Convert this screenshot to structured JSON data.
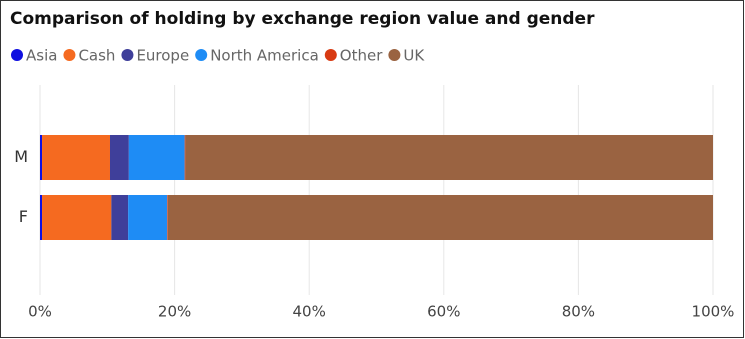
{
  "chart_data": {
    "type": "stacked_barh",
    "title": "Comparison of holding by exchange region value and gender",
    "categories": [
      "M",
      "F"
    ],
    "series": [
      {
        "name": "Asia",
        "color": "#1010e0",
        "values": [
          0.3,
          0.3
        ]
      },
      {
        "name": "Cash",
        "color": "#f56a20",
        "values": [
          10.1,
          10.3
        ]
      },
      {
        "name": "Europe",
        "color": "#3f3f9a",
        "values": [
          2.8,
          2.5
        ]
      },
      {
        "name": "North America",
        "color": "#1e8cf5",
        "values": [
          8.3,
          5.8
        ]
      },
      {
        "name": "Other",
        "color": "#d83a12",
        "values": [
          0.1,
          0.1
        ]
      },
      {
        "name": "UK",
        "color": "#9a6341",
        "values": [
          78.4,
          81.0
        ]
      }
    ],
    "xlim": [
      0,
      100
    ],
    "xticks": [
      {
        "value": 0,
        "label": "0%"
      },
      {
        "value": 20,
        "label": "20%"
      },
      {
        "value": 40,
        "label": "40%"
      },
      {
        "value": 60,
        "label": "60%"
      },
      {
        "value": 80,
        "label": "80%"
      },
      {
        "value": 100,
        "label": "100%"
      }
    ],
    "grid": true
  }
}
